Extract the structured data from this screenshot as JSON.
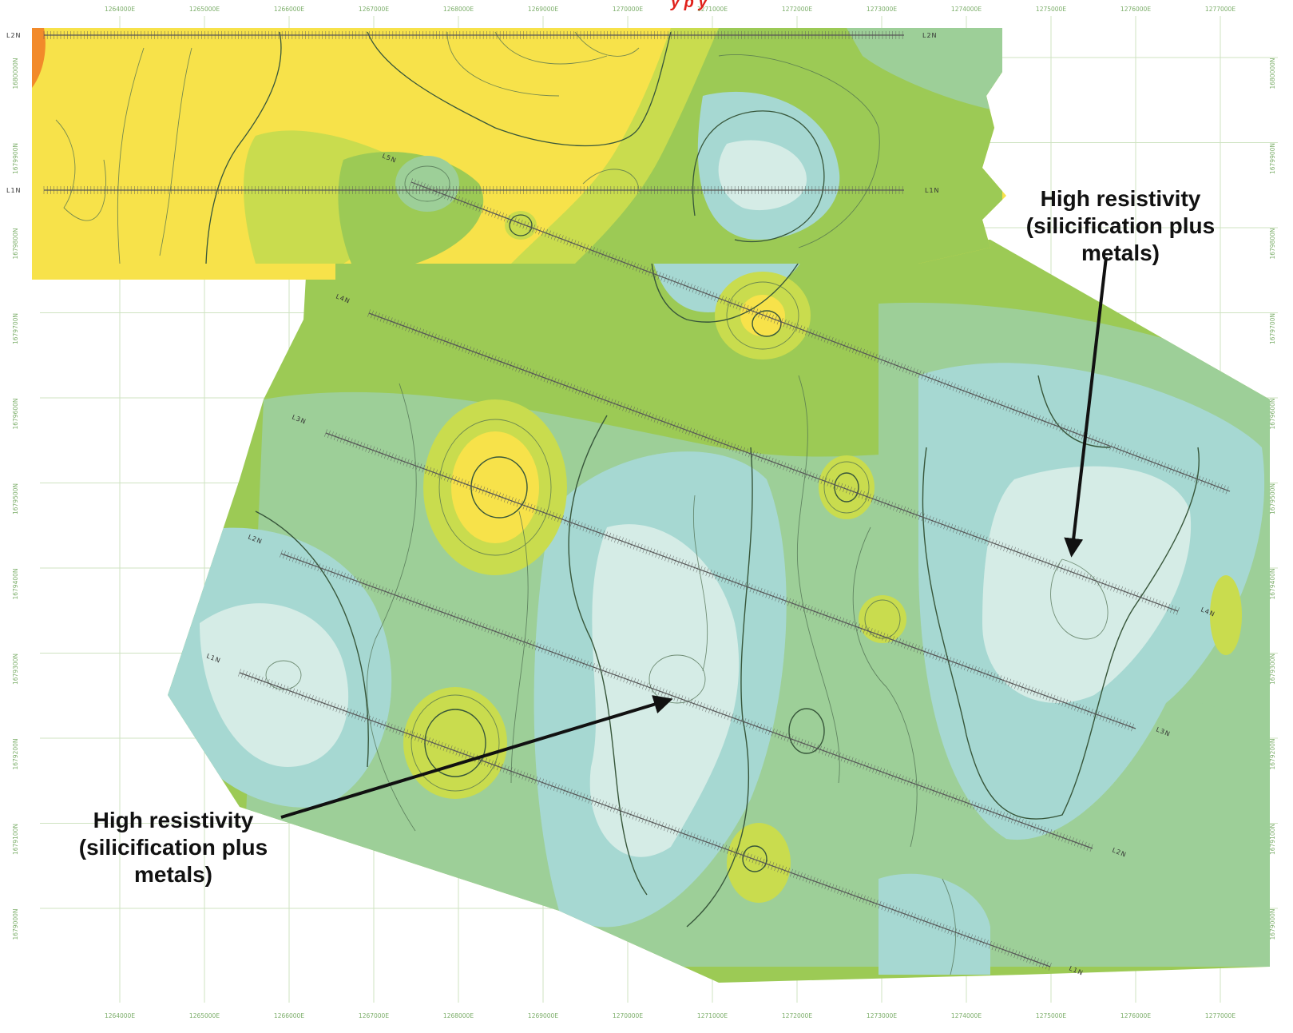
{
  "title_fragment": "y   p y",
  "colors": {
    "title": "#e0201a",
    "grid": "#cfe3c2",
    "tick_label": "#7cae6a",
    "very_high": "#f28a2a",
    "high": "#f7e24a",
    "mid_high": "#c9dc4e",
    "mid": "#9cca55",
    "mid_low": "#9dcf98",
    "low": "#a6d8d2",
    "very_low": "#d5ece6",
    "survey_line": "#555555",
    "arrow": "#111111"
  },
  "easting_ticks": [
    "1264000E",
    "1265000E",
    "1266000E",
    "1267000E",
    "1268000E",
    "1269000E",
    "1270000E",
    "1271000E",
    "1272000E",
    "1273000E",
    "1274000E",
    "1275000E",
    "1276000E",
    "1277000E"
  ],
  "northing_ticks": [
    "1680000N",
    "1679900N",
    "1679800N",
    "1679700N",
    "1679600N",
    "1679500N",
    "1679400N",
    "1679300N",
    "1679200N",
    "1679100N",
    "1679000N"
  ],
  "survey_lines": {
    "north_block": [
      "L2N",
      "L2N",
      "L1N",
      "L1N"
    ],
    "rotated_block": [
      "L5N",
      "L4N",
      "L4N",
      "L3N",
      "L3N",
      "L2N",
      "L2N",
      "L1N",
      "L1N"
    ]
  },
  "annotations": [
    {
      "text_lines": [
        "High resistivity",
        "(silicification plus",
        "metals)"
      ]
    },
    {
      "text_lines": [
        "High resistivity",
        "(silicification plus",
        "metals)"
      ]
    }
  ]
}
